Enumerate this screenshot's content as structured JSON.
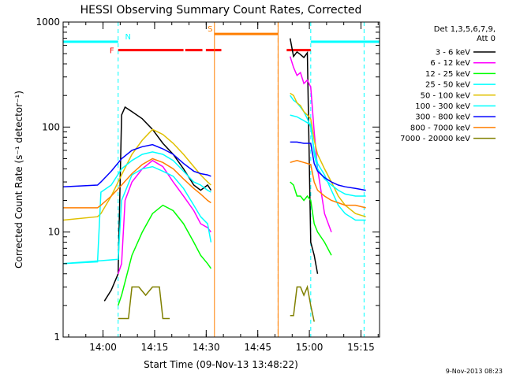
{
  "chart_data": {
    "type": "line",
    "title": "HESSI Observing Summary Count Rates, Corrected",
    "xlabel": "Start Time (09-Nov-13 13:48:22)",
    "ylabel": "Corrected Count Rate (s⁻¹ detector⁻¹)",
    "x_unit": "minutes after 13:48:22",
    "xlim": [
      0,
      92
    ],
    "ylim": [
      1,
      1000
    ],
    "yscale": "log",
    "x_ticks": [
      {
        "x": 11.6,
        "label": "14:00"
      },
      {
        "x": 26.6,
        "label": "14:15"
      },
      {
        "x": 41.6,
        "label": "14:30"
      },
      {
        "x": 56.6,
        "label": "14:45"
      },
      {
        "x": 71.6,
        "label": "15:00"
      },
      {
        "x": 86.6,
        "label": "15:15"
      }
    ],
    "y_ticks": [
      {
        "y": 1,
        "label": "1"
      },
      {
        "y": 10,
        "label": "10"
      },
      {
        "y": 100,
        "label": "100"
      },
      {
        "y": 1000,
        "label": "1000"
      }
    ],
    "legend": {
      "header": [
        "Det 1,3,5,6,7,9,",
        "Att 0"
      ],
      "placement": "right"
    },
    "stamp": "9-Nov-2013 08:23",
    "flags": [
      {
        "label": "N",
        "color": "#00ffff",
        "y": 650,
        "segments": [
          [
            0,
            16
          ],
          [
            72,
            92
          ]
        ],
        "vlines": [
          16,
          72,
          87.5
        ],
        "label_x": 18
      },
      {
        "label": "F",
        "color": "#ff0000",
        "y": 540,
        "segments": [
          [
            16,
            35
          ],
          [
            35.5,
            40.5
          ],
          [
            41.5,
            46
          ],
          [
            65,
            72
          ]
        ],
        "vlines": [],
        "label_x": 13.5
      },
      {
        "label": "S",
        "color": "#ff7f00",
        "y": 770,
        "segments": [
          [
            44,
            62.5
          ]
        ],
        "vlines": [
          44,
          62.5
        ],
        "label_x": 42
      },
      {
        "label": "",
        "color": "#ff7f00",
        "y": 770,
        "segments": [],
        "vlines_dashed": [
          62.5
        ],
        "vlines": [],
        "label_x": 0
      }
    ],
    "gap": [
      44,
      63
    ],
    "series": [
      {
        "name": "3 - 6 keV",
        "color": "#000000",
        "x": [
          12,
          14,
          16,
          17,
          18,
          20,
          23,
          26,
          29,
          32,
          35,
          38,
          40,
          42,
          43,
          66,
          67,
          68,
          69,
          70,
          71,
          72,
          73,
          74
        ],
        "y": [
          2.2,
          2.8,
          4.0,
          130,
          155,
          140,
          120,
          95,
          70,
          55,
          40,
          28,
          25,
          28,
          25,
          700,
          470,
          520,
          490,
          460,
          510,
          8,
          6,
          4
        ]
      },
      {
        "name": "6 - 12 keV",
        "color": "#ff00ff",
        "x": [
          16,
          17,
          18,
          20,
          23,
          26,
          29,
          32,
          35,
          38,
          40,
          42,
          43,
          66,
          67,
          68,
          69,
          70,
          71,
          72,
          73,
          74,
          76,
          78
        ],
        "y": [
          4,
          5,
          20,
          30,
          40,
          48,
          42,
          30,
          22,
          16,
          12,
          11,
          10,
          470,
          370,
          310,
          330,
          260,
          280,
          240,
          90,
          40,
          15,
          10
        ]
      },
      {
        "name": "12 - 25 keV",
        "color": "#00ff00",
        "x": [
          16,
          17,
          20,
          23,
          26,
          29,
          32,
          35,
          38,
          40,
          42,
          43,
          66,
          67,
          68,
          69,
          70,
          71,
          72,
          73,
          74,
          76,
          78
        ],
        "y": [
          2,
          2.5,
          6,
          10,
          15,
          18,
          16,
          12,
          8,
          6,
          5,
          4.5,
          30,
          28,
          22,
          22,
          20,
          22,
          20,
          12,
          10,
          8,
          6
        ]
      },
      {
        "name": "25 - 50 keV",
        "color": "#00ffff",
        "x": [
          0,
          16,
          17,
          20,
          23,
          26,
          29,
          32,
          35,
          38,
          40,
          42,
          43,
          66,
          67,
          68,
          69,
          70,
          71,
          72,
          73,
          74,
          76,
          78,
          80,
          82,
          85,
          88
        ],
        "y": [
          5,
          5.5,
          20,
          35,
          40,
          42,
          38,
          34,
          26,
          18,
          14,
          12,
          8,
          200,
          180,
          170,
          155,
          140,
          120,
          100,
          60,
          45,
          35,
          25,
          18,
          15,
          13,
          13
        ]
      },
      {
        "name": "50 - 100 keV",
        "color": "#e0c000",
        "x": [
          0,
          10,
          11,
          14,
          17,
          20,
          23,
          26,
          29,
          32,
          35,
          38,
          40,
          42,
          43,
          66,
          67,
          68,
          69,
          70,
          71,
          72,
          73,
          74,
          76,
          78,
          80,
          82,
          85,
          88
        ],
        "y": [
          13,
          14,
          15,
          22,
          35,
          55,
          75,
          95,
          85,
          70,
          55,
          42,
          35,
          30,
          28,
          210,
          200,
          170,
          160,
          140,
          130,
          120,
          75,
          55,
          40,
          30,
          22,
          18,
          15,
          14
        ]
      },
      {
        "name": "100 - 300 keV",
        "color": "#00ffff",
        "x": [
          0,
          10,
          11,
          14,
          17,
          20,
          23,
          26,
          29,
          32,
          35,
          38,
          40,
          42,
          43,
          66,
          68,
          70,
          72,
          73,
          74,
          76,
          78,
          80,
          82,
          85,
          88
        ],
        "y": [
          5,
          5.2,
          24,
          28,
          40,
          48,
          55,
          58,
          55,
          48,
          38,
          30,
          28,
          25,
          24,
          130,
          125,
          115,
          105,
          55,
          40,
          32,
          28,
          25,
          23,
          22,
          22
        ]
      },
      {
        "name": "300 - 800 keV",
        "color": "#0000ff",
        "x": [
          0,
          10,
          11,
          14,
          17,
          20,
          23,
          26,
          29,
          32,
          35,
          38,
          40,
          42,
          43,
          66,
          68,
          70,
          72,
          73,
          74,
          76,
          78,
          80,
          82,
          85,
          88
        ],
        "y": [
          27,
          28,
          30,
          38,
          50,
          60,
          65,
          68,
          62,
          55,
          45,
          38,
          36,
          35,
          34,
          72,
          72,
          70,
          70,
          45,
          38,
          33,
          30,
          28,
          27,
          26,
          25
        ]
      },
      {
        "name": "800 - 7000 keV",
        "color": "#ff7f00",
        "x": [
          0,
          10,
          11,
          14,
          17,
          20,
          23,
          26,
          29,
          32,
          35,
          38,
          40,
          42,
          43,
          66,
          68,
          70,
          72,
          73,
          74,
          76,
          78,
          80,
          82,
          85,
          88
        ],
        "y": [
          17,
          17,
          18,
          22,
          28,
          36,
          44,
          50,
          46,
          40,
          32,
          26,
          23,
          20,
          19,
          46,
          48,
          46,
          44,
          30,
          25,
          22,
          20,
          19,
          18,
          18,
          17
        ]
      },
      {
        "name": "7000 - 20000 keV",
        "color": "#808000",
        "x": [
          16,
          19,
          20,
          22,
          24,
          26,
          28,
          29,
          31,
          66,
          67,
          68,
          69,
          70,
          71,
          72,
          73
        ],
        "y": [
          1.5,
          1.5,
          3,
          3,
          2.5,
          3,
          3,
          1.5,
          1.5,
          1.6,
          1.6,
          3,
          3,
          2.5,
          3,
          2,
          1.4
        ]
      }
    ]
  }
}
